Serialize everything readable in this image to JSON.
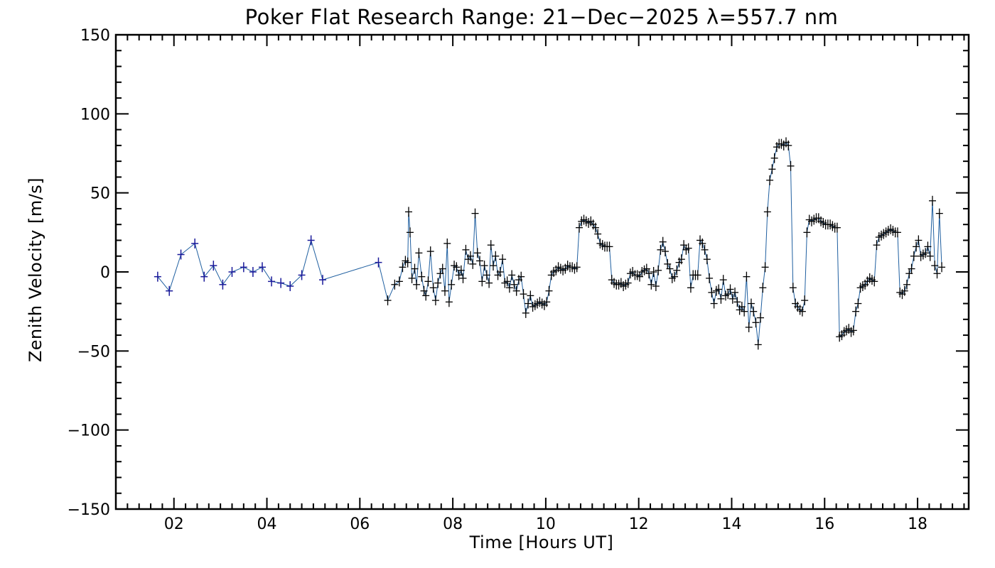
{
  "chart_data": {
    "type": "line",
    "title": "Poker Flat Research Range: 21−Dec−2025 λ=557.7 nm",
    "xlabel": "Time [Hours UT]",
    "ylabel": "Zenith Velocity [m/s]",
    "xlim": [
      0.75,
      19.1
    ],
    "ylim": [
      -150,
      150
    ],
    "x_ticks": [
      2,
      4,
      6,
      8,
      10,
      12,
      14,
      16,
      18
    ],
    "x_tick_labels": [
      "02",
      "04",
      "06",
      "08",
      "10",
      "12",
      "14",
      "16",
      "18"
    ],
    "y_ticks": [
      -150,
      -100,
      -50,
      0,
      50,
      100,
      150
    ],
    "y_tick_labels": [
      "−150",
      "−100",
      "−50",
      "0",
      "50",
      "100",
      "150"
    ],
    "grid": false,
    "series": [
      {
        "color": "#1f5fa0",
        "marker": "+",
        "points": [
          [
            1.65,
            -3
          ],
          [
            1.9,
            -12
          ],
          [
            2.15,
            11
          ],
          [
            2.45,
            18
          ],
          [
            2.65,
            -3
          ],
          [
            2.85,
            4
          ],
          [
            3.05,
            -8
          ],
          [
            3.25,
            0
          ],
          [
            3.5,
            3
          ],
          [
            3.7,
            0
          ],
          [
            3.9,
            3
          ],
          [
            4.1,
            -6
          ],
          [
            4.3,
            -7
          ],
          [
            4.5,
            -9
          ],
          [
            4.75,
            -2
          ],
          [
            4.95,
            20
          ],
          [
            5.2,
            -5
          ],
          [
            6.4,
            6
          ],
          [
            6.6,
            -18
          ],
          [
            6.75,
            -8
          ],
          [
            6.85,
            -6
          ],
          [
            6.92,
            3
          ],
          [
            6.98,
            7
          ],
          [
            7.03,
            6
          ],
          [
            7.05,
            38
          ],
          [
            7.08,
            25
          ],
          [
            7.12,
            -4
          ],
          [
            7.18,
            2
          ],
          [
            7.22,
            -8
          ],
          [
            7.27,
            12
          ],
          [
            7.33,
            -3
          ],
          [
            7.38,
            -12
          ],
          [
            7.42,
            -15
          ],
          [
            7.47,
            -6
          ],
          [
            7.52,
            13
          ],
          [
            7.58,
            -10
          ],
          [
            7.63,
            -18
          ],
          [
            7.68,
            -7
          ],
          [
            7.73,
            -1
          ],
          [
            7.78,
            2
          ],
          [
            7.83,
            -12
          ],
          [
            7.88,
            18
          ],
          [
            7.92,
            -19
          ],
          [
            7.97,
            -8
          ],
          [
            8.03,
            4
          ],
          [
            8.08,
            3
          ],
          [
            8.13,
            -2
          ],
          [
            8.18,
            1
          ],
          [
            8.22,
            -4
          ],
          [
            8.28,
            14
          ],
          [
            8.33,
            8
          ],
          [
            8.38,
            10
          ],
          [
            8.43,
            5
          ],
          [
            8.48,
            37
          ],
          [
            8.53,
            12
          ],
          [
            8.58,
            7
          ],
          [
            8.63,
            -6
          ],
          [
            8.68,
            4
          ],
          [
            8.73,
            -2
          ],
          [
            8.78,
            -7
          ],
          [
            8.82,
            17
          ],
          [
            8.87,
            4
          ],
          [
            8.92,
            10
          ],
          [
            8.97,
            -2
          ],
          [
            9.02,
            0
          ],
          [
            9.07,
            8
          ],
          [
            9.12,
            -7
          ],
          [
            9.17,
            -6
          ],
          [
            9.22,
            -10
          ],
          [
            9.27,
            -2
          ],
          [
            9.32,
            -8
          ],
          [
            9.37,
            -12
          ],
          [
            9.42,
            -5
          ],
          [
            9.47,
            -3
          ],
          [
            9.52,
            -14
          ],
          [
            9.57,
            -26
          ],
          [
            9.62,
            -20
          ],
          [
            9.67,
            -15
          ],
          [
            9.72,
            -22
          ],
          [
            9.77,
            -21
          ],
          [
            9.82,
            -20
          ],
          [
            9.87,
            -19
          ],
          [
            9.92,
            -20
          ],
          [
            9.97,
            -21
          ],
          [
            10.02,
            -19
          ],
          [
            10.07,
            -12
          ],
          [
            10.12,
            -2
          ],
          [
            10.17,
            0
          ],
          [
            10.22,
            1
          ],
          [
            10.27,
            3
          ],
          [
            10.32,
            2
          ],
          [
            10.37,
            1
          ],
          [
            10.42,
            2
          ],
          [
            10.47,
            4
          ],
          [
            10.52,
            3
          ],
          [
            10.57,
            3
          ],
          [
            10.62,
            2
          ],
          [
            10.67,
            3
          ],
          [
            10.72,
            28
          ],
          [
            10.77,
            32
          ],
          [
            10.82,
            33
          ],
          [
            10.87,
            32
          ],
          [
            10.92,
            31
          ],
          [
            10.97,
            32
          ],
          [
            11.02,
            30
          ],
          [
            11.07,
            28
          ],
          [
            11.12,
            24
          ],
          [
            11.17,
            18
          ],
          [
            11.22,
            17
          ],
          [
            11.27,
            16
          ],
          [
            11.32,
            16
          ],
          [
            11.37,
            16
          ],
          [
            11.42,
            -5
          ],
          [
            11.47,
            -7
          ],
          [
            11.52,
            -8
          ],
          [
            11.57,
            -8
          ],
          [
            11.62,
            -7
          ],
          [
            11.67,
            -9
          ],
          [
            11.72,
            -8
          ],
          [
            11.77,
            -7
          ],
          [
            11.82,
            -1
          ],
          [
            11.87,
            0
          ],
          [
            11.92,
            -2
          ],
          [
            11.97,
            -2
          ],
          [
            12.02,
            -3
          ],
          [
            12.07,
            0
          ],
          [
            12.12,
            1
          ],
          [
            12.17,
            2
          ],
          [
            12.22,
            -1
          ],
          [
            12.27,
            -8
          ],
          [
            12.32,
            0
          ],
          [
            12.37,
            -9
          ],
          [
            12.42,
            1
          ],
          [
            12.47,
            14
          ],
          [
            12.52,
            19
          ],
          [
            12.57,
            13
          ],
          [
            12.62,
            5
          ],
          [
            12.67,
            2
          ],
          [
            12.72,
            -4
          ],
          [
            12.77,
            -3
          ],
          [
            12.82,
            1
          ],
          [
            12.87,
            6
          ],
          [
            12.92,
            8
          ],
          [
            12.97,
            17
          ],
          [
            13.02,
            14
          ],
          [
            13.07,
            15
          ],
          [
            13.12,
            -10
          ],
          [
            13.17,
            -2
          ],
          [
            13.22,
            -2
          ],
          [
            13.27,
            -2
          ],
          [
            13.32,
            20
          ],
          [
            13.37,
            18
          ],
          [
            13.42,
            14
          ],
          [
            13.47,
            8
          ],
          [
            13.52,
            -4
          ],
          [
            13.57,
            -13
          ],
          [
            13.62,
            -20
          ],
          [
            13.67,
            -12
          ],
          [
            13.72,
            -11
          ],
          [
            13.77,
            -17
          ],
          [
            13.82,
            -5
          ],
          [
            13.87,
            -15
          ],
          [
            13.92,
            -14
          ],
          [
            13.97,
            -11
          ],
          [
            14.02,
            -17
          ],
          [
            14.07,
            -13
          ],
          [
            14.12,
            -19
          ],
          [
            14.17,
            -24
          ],
          [
            14.22,
            -22
          ],
          [
            14.27,
            -25
          ],
          [
            14.32,
            -3
          ],
          [
            14.37,
            -35
          ],
          [
            14.42,
            -20
          ],
          [
            14.47,
            -25
          ],
          [
            14.52,
            -32
          ],
          [
            14.57,
            -46
          ],
          [
            14.62,
            -29
          ],
          [
            14.67,
            -10
          ],
          [
            14.72,
            3
          ],
          [
            14.77,
            38
          ],
          [
            14.82,
            58
          ],
          [
            14.87,
            65
          ],
          [
            14.92,
            72
          ],
          [
            14.97,
            79
          ],
          [
            15.02,
            81
          ],
          [
            15.07,
            81
          ],
          [
            15.12,
            80
          ],
          [
            15.17,
            82
          ],
          [
            15.22,
            80
          ],
          [
            15.27,
            67
          ],
          [
            15.32,
            -10
          ],
          [
            15.37,
            -20
          ],
          [
            15.42,
            -22
          ],
          [
            15.47,
            -24
          ],
          [
            15.52,
            -25
          ],
          [
            15.57,
            -18
          ],
          [
            15.62,
            25
          ],
          [
            15.67,
            33
          ],
          [
            15.72,
            32
          ],
          [
            15.77,
            33
          ],
          [
            15.82,
            34
          ],
          [
            15.87,
            34
          ],
          [
            15.92,
            32
          ],
          [
            15.97,
            31
          ],
          [
            16.02,
            30
          ],
          [
            16.07,
            30
          ],
          [
            16.12,
            30
          ],
          [
            16.17,
            29
          ],
          [
            16.22,
            28
          ],
          [
            16.27,
            28
          ],
          [
            16.32,
            -41
          ],
          [
            16.37,
            -40
          ],
          [
            16.42,
            -38
          ],
          [
            16.47,
            -37
          ],
          [
            16.52,
            -36
          ],
          [
            16.57,
            -38
          ],
          [
            16.62,
            -37
          ],
          [
            16.67,
            -25
          ],
          [
            16.72,
            -20
          ],
          [
            16.77,
            -10
          ],
          [
            16.82,
            -9
          ],
          [
            16.87,
            -8
          ],
          [
            16.92,
            -6
          ],
          [
            16.97,
            -4
          ],
          [
            17.02,
            -5
          ],
          [
            17.07,
            -6
          ],
          [
            17.12,
            17
          ],
          [
            17.17,
            22
          ],
          [
            17.22,
            23
          ],
          [
            17.27,
            24
          ],
          [
            17.32,
            25
          ],
          [
            17.37,
            26
          ],
          [
            17.42,
            27
          ],
          [
            17.47,
            26
          ],
          [
            17.52,
            25
          ],
          [
            17.57,
            25
          ],
          [
            17.62,
            -13
          ],
          [
            17.67,
            -14
          ],
          [
            17.72,
            -12
          ],
          [
            17.77,
            -8
          ],
          [
            17.82,
            -1
          ],
          [
            17.87,
            2
          ],
          [
            17.92,
            10
          ],
          [
            17.97,
            16
          ],
          [
            18.02,
            20
          ],
          [
            18.07,
            10
          ],
          [
            18.12,
            11
          ],
          [
            18.17,
            12
          ],
          [
            18.22,
            16
          ],
          [
            18.27,
            10
          ],
          [
            18.32,
            45
          ],
          [
            18.37,
            4
          ],
          [
            18.42,
            -1
          ],
          [
            18.47,
            37
          ],
          [
            18.52,
            3
          ]
        ]
      }
    ]
  }
}
